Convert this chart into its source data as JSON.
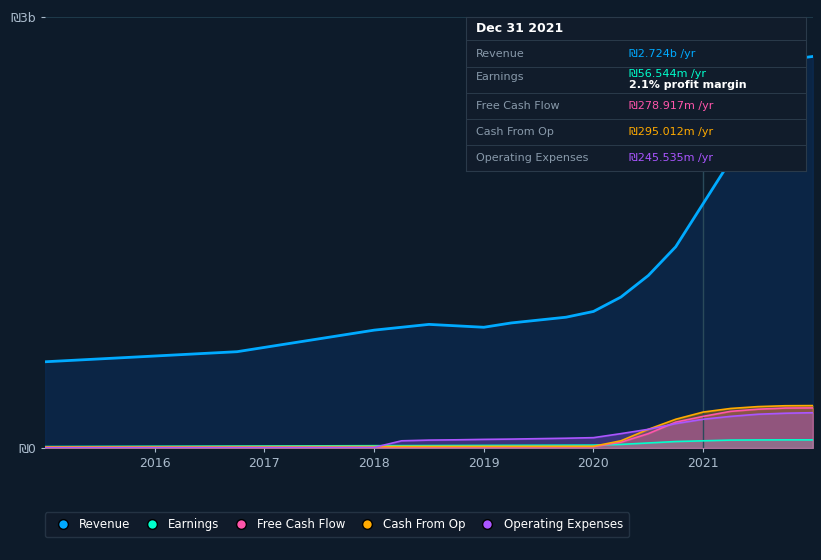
{
  "bg_color": "#0d1b2a",
  "plot_bg_color": "#0d1b2a",
  "grid_color": "#1e3a4a",
  "ylim": [
    0,
    3000000000
  ],
  "yticks": [
    0,
    3000000000
  ],
  "ytick_labels": [
    "₪0",
    "₪3b"
  ],
  "years": [
    2015.0,
    2015.25,
    2015.5,
    2015.75,
    2016.0,
    2016.25,
    2016.5,
    2016.75,
    2017.0,
    2017.25,
    2017.5,
    2017.75,
    2018.0,
    2018.25,
    2018.5,
    2018.75,
    2019.0,
    2019.25,
    2019.5,
    2019.75,
    2020.0,
    2020.25,
    2020.5,
    2020.75,
    2021.0,
    2021.25,
    2021.5,
    2021.75,
    2022.0
  ],
  "revenue": [
    600000000,
    610000000,
    620000000,
    630000000,
    640000000,
    650000000,
    660000000,
    670000000,
    700000000,
    730000000,
    760000000,
    790000000,
    820000000,
    840000000,
    860000000,
    850000000,
    840000000,
    870000000,
    890000000,
    910000000,
    950000000,
    1050000000,
    1200000000,
    1400000000,
    1700000000,
    2000000000,
    2400000000,
    2700000000,
    2724000000
  ],
  "earnings": [
    10000000,
    10500000,
    11000000,
    11500000,
    12000000,
    12500000,
    13000000,
    13500000,
    14000000,
    14500000,
    15000000,
    15500000,
    16000000,
    16500000,
    17000000,
    17500000,
    18000000,
    18500000,
    19000000,
    19500000,
    20000000,
    25000000,
    35000000,
    45000000,
    50000000,
    55000000,
    56000000,
    56500000,
    56544000
  ],
  "free_cash_flow": [
    5000000,
    5200000,
    5400000,
    5600000,
    5800000,
    6000000,
    6200000,
    6400000,
    6600000,
    6800000,
    7000000,
    7200000,
    7400000,
    7600000,
    7800000,
    8000000,
    8200000,
    8400000,
    8600000,
    8800000,
    9000000,
    40000000,
    100000000,
    180000000,
    220000000,
    255000000,
    270000000,
    278000000,
    278917000
  ],
  "cash_from_op": [
    8000000,
    8200000,
    8400000,
    8600000,
    8800000,
    9000000,
    9200000,
    9400000,
    9600000,
    9800000,
    10000000,
    10200000,
    10400000,
    10600000,
    10800000,
    11000000,
    11200000,
    11400000,
    11600000,
    11800000,
    12000000,
    50000000,
    130000000,
    200000000,
    250000000,
    275000000,
    288000000,
    294000000,
    295012000
  ],
  "operating_expenses": [
    3000000,
    3100000,
    3200000,
    3300000,
    3400000,
    3500000,
    3600000,
    3700000,
    3800000,
    3900000,
    4000000,
    4100000,
    4200000,
    50000000,
    55000000,
    57000000,
    60000000,
    62000000,
    65000000,
    68000000,
    72000000,
    100000000,
    130000000,
    170000000,
    200000000,
    220000000,
    235000000,
    242000000,
    245535000
  ],
  "revenue_color": "#00aaff",
  "revenue_fill": "#0a3a5a",
  "earnings_color": "#00ffcc",
  "free_cash_flow_color": "#ff55aa",
  "cash_from_op_color": "#ffaa00",
  "operating_expenses_color": "#aa55ff",
  "vline_x": 2021.0,
  "vline_color": "#2a4a5a",
  "xlabel_years": [
    2016,
    2017,
    2018,
    2019,
    2020,
    2021
  ],
  "legend_items": [
    "Revenue",
    "Earnings",
    "Free Cash Flow",
    "Cash From Op",
    "Operating Expenses"
  ],
  "legend_colors": [
    "#00aaff",
    "#00ffcc",
    "#ff55aa",
    "#ffaa00",
    "#aa55ff"
  ],
  "tooltip_title": "Dec 31 2021",
  "tooltip_rows": [
    {
      "label": "Revenue",
      "value": "₪2.724b /yr",
      "value_color": "#00aaff",
      "extra": null
    },
    {
      "label": "Earnings",
      "value": "₪56.544m /yr",
      "value_color": "#00ffcc",
      "extra": "2.1% profit margin"
    },
    {
      "label": "Free Cash Flow",
      "value": "₪278.917m /yr",
      "value_color": "#ff55aa",
      "extra": null
    },
    {
      "label": "Cash From Op",
      "value": "₪295.012m /yr",
      "value_color": "#ffaa00",
      "extra": null
    },
    {
      "label": "Operating Expenses",
      "value": "₪245.535m /yr",
      "value_color": "#aa55ff",
      "extra": null
    }
  ]
}
